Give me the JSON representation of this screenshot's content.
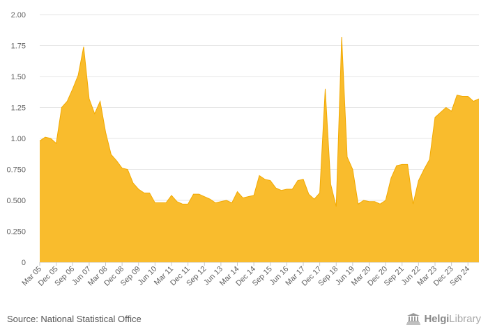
{
  "chart_data": {
    "type": "area",
    "title": "",
    "xlabel": "",
    "ylabel": "",
    "ylim": [
      0,
      2
    ],
    "yticks": [
      0,
      0.25,
      0.5,
      0.75,
      1.0,
      1.25,
      1.5,
      1.75,
      2.0
    ],
    "ytick_labels": [
      "0",
      "0.250",
      "0.500",
      "0.750",
      "1.00",
      "1.25",
      "1.50",
      "1.75",
      "2.00"
    ],
    "grid": true,
    "color": "#F9BC2D",
    "stroke_color": "#F2A900",
    "start": "Mar 05",
    "x_labels": [
      "Mar 05",
      "Dec 05",
      "Sep 06",
      "Jun 07",
      "Mar 08",
      "Dec 08",
      "Sep 09",
      "Jun 10",
      "Mar 11",
      "Dec 11",
      "Sep 12",
      "Jun 13",
      "Mar 14",
      "Dec 14",
      "Sep 15",
      "Jun 16",
      "Mar 17",
      "Dec 17",
      "Sep 18",
      "Jun 19",
      "Mar 20",
      "Dec 20",
      "Sep 21",
      "Jun 22",
      "Mar 23",
      "Dec 23",
      "Sep 24"
    ],
    "values": [
      0.98,
      1.01,
      1.0,
      0.96,
      1.25,
      1.3,
      1.4,
      1.51,
      1.74,
      1.32,
      1.2,
      1.3,
      1.05,
      0.87,
      0.82,
      0.76,
      0.75,
      0.64,
      0.59,
      0.56,
      0.56,
      0.48,
      0.48,
      0.48,
      0.54,
      0.49,
      0.47,
      0.47,
      0.55,
      0.55,
      0.53,
      0.51,
      0.48,
      0.49,
      0.5,
      0.48,
      0.57,
      0.52,
      0.53,
      0.54,
      0.7,
      0.67,
      0.66,
      0.6,
      0.58,
      0.59,
      0.59,
      0.66,
      0.67,
      0.55,
      0.51,
      0.56,
      1.4,
      0.63,
      0.45,
      1.82,
      0.85,
      0.75,
      0.47,
      0.5,
      0.49,
      0.49,
      0.47,
      0.5,
      0.68,
      0.78,
      0.79,
      0.79,
      0.47,
      0.66,
      0.75,
      0.83,
      1.17,
      1.21,
      1.25,
      1.22,
      1.35,
      1.34,
      1.34,
      1.3,
      1.32
    ]
  },
  "footer": {
    "source": "Source: National Statistical Office",
    "logo_main": "Helgi",
    "logo_sub": "Library",
    "logo_icon": "helgi-building-icon"
  }
}
